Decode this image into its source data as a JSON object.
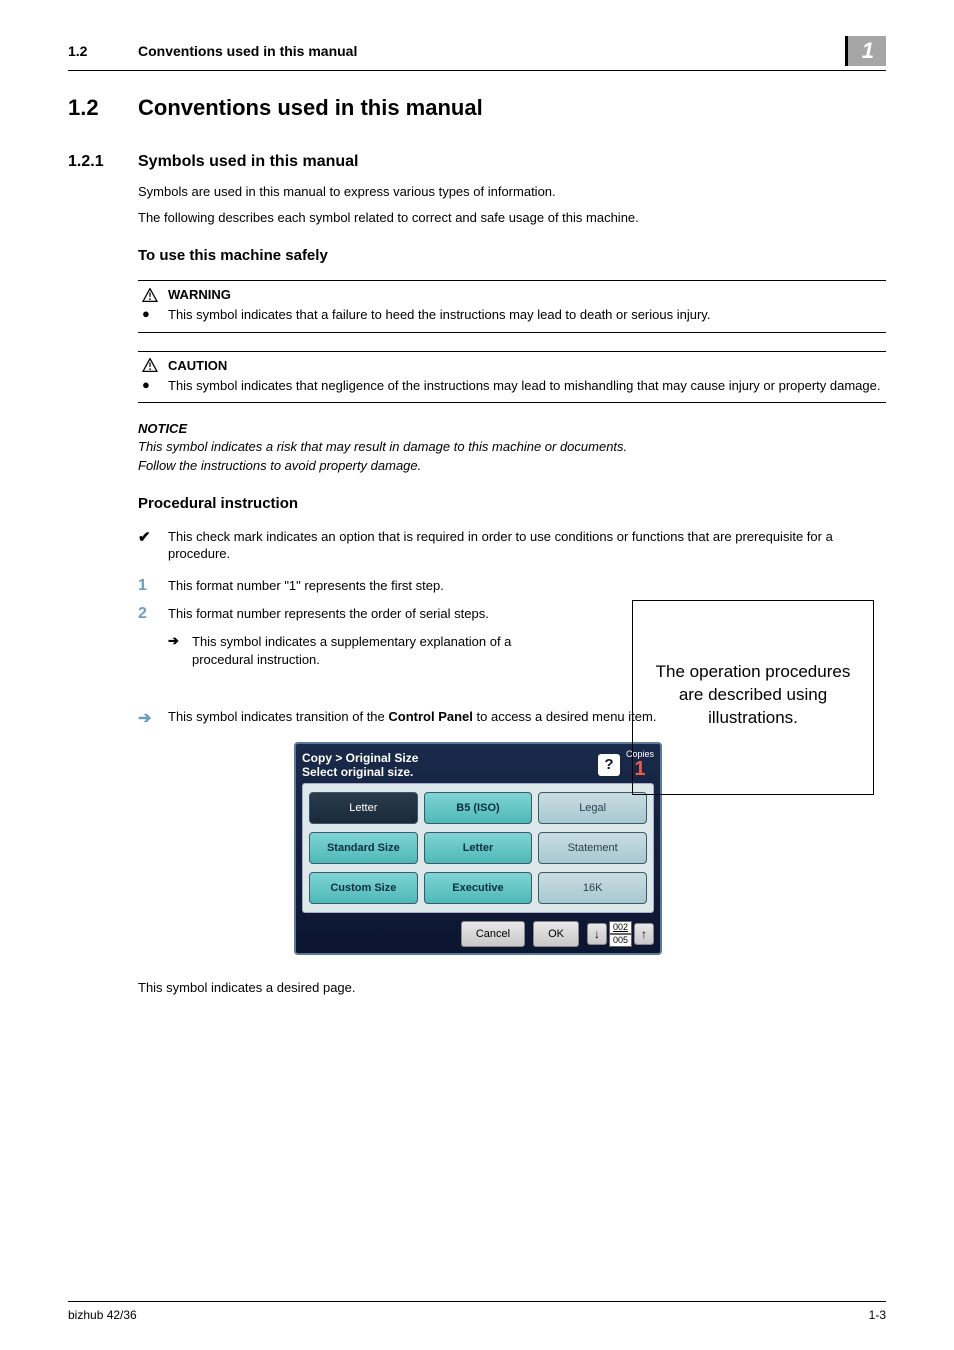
{
  "header": {
    "section_num": "1.2",
    "section_title": "Conventions used in this manual",
    "chapter_tab": "1"
  },
  "h1": {
    "num": "1.2",
    "title": "Conventions used in this manual"
  },
  "h2": {
    "num": "1.2.1",
    "title": "Symbols used in this manual"
  },
  "intro": {
    "p1": "Symbols are used in this manual to express various types of information.",
    "p2": "The following describes each symbol related to correct and safe usage of this machine."
  },
  "h3_safely": "To use this machine safely",
  "warning": {
    "label": "WARNING",
    "text": "This symbol indicates that a failure to heed the instructions may lead to death or serious injury."
  },
  "caution": {
    "label": "CAUTION",
    "text": "This symbol indicates that negligence of the instructions may lead to mishandling that may cause injury or property damage."
  },
  "notice": {
    "label": "NOTICE",
    "l1": "This symbol indicates a risk that may result in damage to this machine or documents.",
    "l2": "Follow the instructions to avoid property damage."
  },
  "h3_proc": "Procedural instruction",
  "check_text": "This check mark indicates an option that is required in order to use conditions or functions that are prerequisite for a procedure.",
  "step1": {
    "n": "1",
    "text": "This format number \"1\" represents the first step."
  },
  "step2": {
    "n": "2",
    "text": "This format number represents the order of serial steps.",
    "sub": "This symbol indicates a supplementary explanation of a procedural instruction."
  },
  "side_box": "The operation procedures are described using illustrations.",
  "transition": {
    "pre": "This symbol indicates transition of the ",
    "bold": "Control Panel",
    "post": " to access a desired menu item."
  },
  "panel": {
    "breadcrumb_l1": "Copy > Original Size",
    "breadcrumb_l2": "Select original size.",
    "copies_label": "Copies",
    "copies_num": "1",
    "buttons": [
      {
        "label": "Letter",
        "style": "dark",
        "interact": true
      },
      {
        "label": "B5 (ISO)",
        "style": "teal",
        "interact": true
      },
      {
        "label": "Legal",
        "style": "lite",
        "interact": true
      },
      {
        "label": "Standard Size",
        "style": "teal",
        "interact": true
      },
      {
        "label": "Letter",
        "style": "teal",
        "interact": true
      },
      {
        "label": "Statement",
        "style": "lite",
        "interact": true
      },
      {
        "label": "Custom Size",
        "style": "teal",
        "interact": true
      },
      {
        "label": "Executive",
        "style": "teal",
        "interact": true
      },
      {
        "label": "16K",
        "style": "lite",
        "interact": true
      }
    ],
    "cancel": "Cancel",
    "ok": "OK",
    "page_top": "002",
    "page_bot": "005"
  },
  "desired_page": "This symbol indicates a desired page.",
  "footer": {
    "left": "bizhub 42/36",
    "right": "1-3"
  },
  "colors": {
    "step_num": "#6a9fc4",
    "trans_arrow": "#6a9fc4",
    "copies_num": "#e85d4a"
  }
}
